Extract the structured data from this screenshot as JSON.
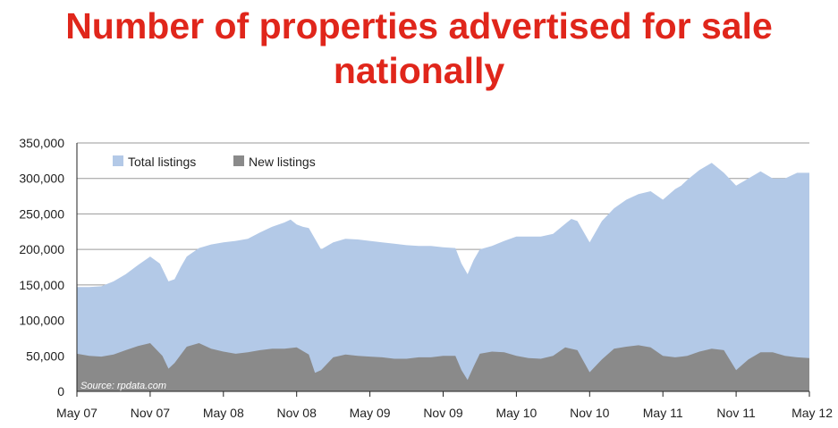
{
  "chart_data": {
    "type": "area",
    "title": "Number of properties advertised for sale nationally",
    "xlabel": "",
    "ylabel": "",
    "ylim": [
      0,
      350000
    ],
    "y_ticks": [
      "0",
      "50,000",
      "100,000",
      "150,000",
      "200,000",
      "250,000",
      "300,000",
      "350,000"
    ],
    "x_ticks": [
      "May 07",
      "Nov 07",
      "May 08",
      "Nov 08",
      "May 09",
      "Nov 09",
      "May 10",
      "Nov 10",
      "May 11",
      "Nov 11",
      "May 12"
    ],
    "x_range": [
      0,
      60
    ],
    "grid": true,
    "legend_position": "top-left",
    "source": "Source: rpdata.com",
    "colors": {
      "total": "#b3c9e7",
      "new": "#8a8a8a",
      "title": "#e0261b"
    },
    "series": [
      {
        "name": "Total listings",
        "x": [
          0,
          1,
          2,
          3,
          4,
          5,
          6,
          6.8,
          7.5,
          8,
          8.5,
          9,
          10,
          11,
          12,
          13,
          14,
          15,
          16,
          17,
          17.5,
          18,
          18.5,
          19,
          20,
          21,
          22,
          23,
          24,
          25,
          26,
          27,
          28,
          29,
          30,
          31,
          31.5,
          32,
          32.5,
          33,
          34,
          35,
          36,
          37,
          38,
          39,
          40,
          40.5,
          41,
          42,
          43,
          44,
          45,
          46,
          47,
          48,
          49,
          49.5,
          50,
          51,
          52,
          53,
          54,
          55,
          56,
          57,
          58,
          59,
          60
        ],
        "values": [
          147000,
          147000,
          148000,
          155000,
          165000,
          178000,
          190000,
          180000,
          155000,
          158000,
          175000,
          190000,
          202000,
          207000,
          210000,
          212000,
          215000,
          224000,
          232000,
          238000,
          242000,
          235000,
          232000,
          230000,
          200000,
          210000,
          215000,
          214000,
          212000,
          210000,
          208000,
          206000,
          205000,
          205000,
          203000,
          202000,
          180000,
          165000,
          185000,
          200000,
          205000,
          212000,
          218000,
          218000,
          218000,
          222000,
          236000,
          243000,
          240000,
          210000,
          240000,
          258000,
          270000,
          278000,
          282000,
          270000,
          285000,
          290000,
          298000,
          312000,
          322000,
          308000,
          290000,
          300000,
          310000,
          300000,
          300000,
          308000,
          308000
        ]
      },
      {
        "name": "New listings",
        "x": [
          0,
          1,
          2,
          3,
          4,
          5,
          6,
          7,
          7.5,
          8,
          9,
          10,
          11,
          12,
          13,
          14,
          15,
          16,
          17,
          18,
          19,
          19.5,
          20,
          21,
          22,
          23,
          24,
          25,
          26,
          27,
          28,
          29,
          30,
          31,
          31.5,
          32,
          32.5,
          33,
          34,
          35,
          36,
          37,
          38,
          39,
          40,
          41,
          42,
          43,
          44,
          45,
          46,
          47,
          48,
          49,
          50,
          51,
          52,
          53,
          54,
          55,
          56,
          57,
          58,
          59,
          60
        ],
        "values": [
          53000,
          50000,
          49000,
          52000,
          58000,
          64000,
          68000,
          50000,
          32000,
          40000,
          63000,
          68000,
          60000,
          56000,
          53000,
          55000,
          58000,
          60000,
          60000,
          62000,
          52000,
          26000,
          30000,
          48000,
          52000,
          50000,
          49000,
          48000,
          46000,
          46000,
          48000,
          48000,
          50000,
          50000,
          30000,
          16000,
          35000,
          53000,
          56000,
          55000,
          50000,
          47000,
          46000,
          50000,
          62000,
          58000,
          27000,
          45000,
          60000,
          63000,
          65000,
          62000,
          50000,
          48000,
          50000,
          56000,
          60000,
          58000,
          30000,
          45000,
          55000,
          55000,
          50000,
          48000,
          47000
        ]
      }
    ]
  }
}
